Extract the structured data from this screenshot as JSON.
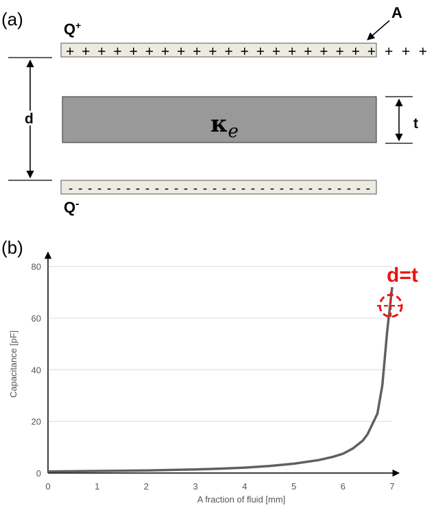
{
  "panel_a": {
    "label": "(a)",
    "top_plate_label": "Q",
    "top_plate_sup": "+",
    "bottom_plate_label": "Q",
    "bottom_plate_sup": "-",
    "area_label": "A",
    "distance_label": "d",
    "thickness_label": "t",
    "dielectric_symbol": "κ",
    "dielectric_subscript": "e",
    "plus_signs": "+ + + + + + + + + + + + + + + + + + + +",
    "plus_signs_extra": "+ + +",
    "minus_signs": "- - - - - - - - - - - - - - - - - - - - - - - - - - - - - - - -",
    "plate_color": "#edebe0",
    "dielectric_color": "#999999"
  },
  "panel_b": {
    "label": "(b)",
    "annotation": "d=t",
    "annotation_color": "#ee1111"
  },
  "chart_data": {
    "type": "line",
    "xlabel": "A fraction of fluid [mm]",
    "ylabel": "Capacitance [pF]",
    "xlim": [
      0,
      7
    ],
    "ylim": [
      0,
      90
    ],
    "xticks": [
      0,
      1,
      2,
      3,
      4,
      5,
      6,
      7
    ],
    "yticks": [
      0,
      20,
      40,
      60,
      80
    ],
    "grid": true,
    "line_color": "#606060",
    "series": [
      {
        "x": [
          0,
          0.5,
          1,
          1.5,
          2,
          2.5,
          3,
          3.5,
          4,
          4.5,
          5,
          5.5,
          5.8,
          6.0,
          6.2,
          6.4,
          6.5,
          6.6,
          6.7,
          6.8,
          6.9,
          7.0
        ],
        "values": [
          0.6,
          0.7,
          0.8,
          0.9,
          1.0,
          1.2,
          1.4,
          1.7,
          2.1,
          2.7,
          3.6,
          5.0,
          6.3,
          7.5,
          9.5,
          12.5,
          15,
          19,
          23,
          34,
          55,
          72
        ]
      }
    ]
  }
}
